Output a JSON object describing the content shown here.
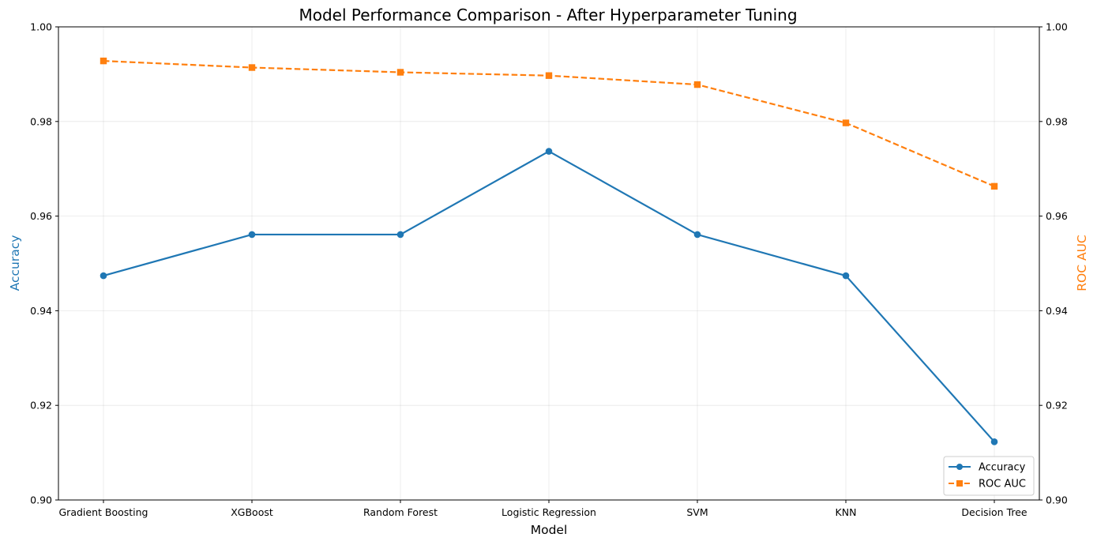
{
  "chart_data": {
    "type": "line",
    "title": "Model Performance Comparison - After Hyperparameter Tuning",
    "xlabel": "Model",
    "ylabel_left": "Accuracy",
    "ylabel_right": "ROC AUC",
    "categories": [
      "Gradient Boosting",
      "XGBoost",
      "Random Forest",
      "Logistic Regression",
      "SVM",
      "KNN",
      "Decision Tree"
    ],
    "ylim_left": [
      0.9,
      1.0
    ],
    "ylim_right": [
      0.9,
      1.0
    ],
    "yticks_left": [
      "0.90",
      "0.92",
      "0.94",
      "0.96",
      "0.98",
      "1.00"
    ],
    "yticks_right": [
      "0.90",
      "0.92",
      "0.94",
      "0.96",
      "0.98",
      "1.00"
    ],
    "grid": true,
    "legend_position": "bottom-right",
    "series": [
      {
        "name": "Accuracy",
        "axis": "left",
        "color": "#1f77b4",
        "line_style": "solid",
        "marker": "circle",
        "values": [
          0.9474,
          0.9561,
          0.9561,
          0.9737,
          0.9561,
          0.9474,
          0.9123
        ]
      },
      {
        "name": "ROC AUC",
        "axis": "right",
        "color": "#ff7f0e",
        "line_style": "dashed",
        "marker": "square",
        "values": [
          0.9928,
          0.9914,
          0.9904,
          0.9897,
          0.9878,
          0.9797,
          0.9663
        ]
      }
    ]
  }
}
